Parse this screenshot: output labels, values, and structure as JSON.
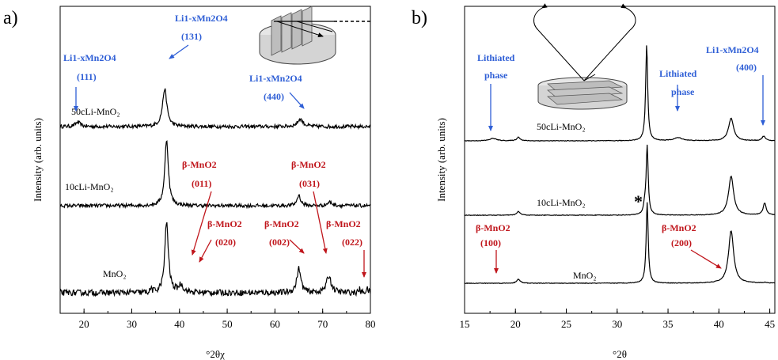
{
  "chart_data": [
    {
      "type": "line",
      "panel_label": "a)",
      "xlabel": "°2θχ",
      "ylabel": "Intensity (arb. units)",
      "xlim": [
        15,
        80
      ],
      "xticks": [
        20,
        30,
        40,
        50,
        60,
        70,
        80
      ],
      "series": [
        {
          "name": "50cLi-MnO₂",
          "offset": 2,
          "noise": 0.06,
          "peaks": [
            [
              18.7,
              0.15,
              0.6
            ],
            [
              36.9,
              1.25,
              0.55
            ],
            [
              65.3,
              0.25,
              0.7
            ]
          ]
        },
        {
          "name": "10cLi-MnO₂",
          "offset": 1,
          "noise": 0.06,
          "peaks": [
            [
              37.3,
              2.2,
              0.45
            ],
            [
              65.0,
              0.35,
              0.45
            ],
            [
              71.5,
              0.12,
              0.6
            ]
          ]
        },
        {
          "name": "MnO₂",
          "offset": 0,
          "noise": 0.1,
          "peaks": [
            [
              34.1,
              0.15,
              0.15
            ],
            [
              37.3,
              2.35,
              0.45
            ],
            [
              40.3,
              0.25,
              0.6
            ],
            [
              65.0,
              0.8,
              0.5
            ],
            [
              71.3,
              0.55,
              0.6
            ],
            [
              77.7,
              0.12,
              0.15
            ],
            [
              79.3,
              0.12,
              0.3
            ]
          ]
        }
      ],
      "annotations": [
        {
          "lines": [
            "Li1-xMn2O4",
            "(111)"
          ],
          "color": "blue"
        },
        {
          "lines": [
            "Li1-xMn2O4",
            "(131)"
          ],
          "color": "blue"
        },
        {
          "lines": [
            "Li1-xMn2O4",
            "(440)"
          ],
          "color": "blue"
        },
        {
          "lines": [
            "β-MnO2",
            "(011)"
          ],
          "color": "red"
        },
        {
          "lines": [
            "β-MnO2",
            "(020)"
          ],
          "color": "red"
        },
        {
          "lines": [
            "β-MnO2",
            "(002)"
          ],
          "color": "red"
        },
        {
          "lines": [
            "β-MnO2",
            "(031)"
          ],
          "color": "red"
        },
        {
          "lines": [
            "β-MnO2",
            "(022)"
          ],
          "color": "red"
        }
      ]
    },
    {
      "type": "line",
      "panel_label": "b)",
      "xlabel": "°2θ",
      "ylabel": "Intensity (arb. units)",
      "xlim": [
        15,
        45.5
      ],
      "xticks": [
        15,
        20,
        25,
        30,
        35,
        40,
        45
      ],
      "series": [
        {
          "name": "50cLi-MnO₂",
          "offset": 2,
          "noise": 0.01,
          "peaks": [
            [
              17.8,
              0.08,
              0.4
            ],
            [
              20.3,
              0.12,
              0.2
            ],
            [
              32.9,
              3.2,
              0.12
            ],
            [
              36.0,
              0.1,
              0.5
            ],
            [
              41.2,
              0.75,
              0.3
            ],
            [
              44.4,
              0.15,
              0.2
            ]
          ]
        },
        {
          "name": "10cLi-MnO₂",
          "offset": 1,
          "noise": 0.01,
          "peaks": [
            [
              20.3,
              0.12,
              0.2
            ],
            [
              32.7,
              0.25,
              0.12
            ],
            [
              32.95,
              2.3,
              0.12
            ],
            [
              41.2,
              1.3,
              0.3
            ],
            [
              44.5,
              0.4,
              0.18
            ]
          ]
        },
        {
          "name": "MnO₂",
          "offset": 0,
          "noise": 0.01,
          "peaks": [
            [
              20.3,
              0.13,
              0.2
            ],
            [
              32.95,
              2.7,
              0.12
            ],
            [
              41.2,
              1.75,
              0.3
            ],
            [
              44.5,
              0.02,
              0.18
            ]
          ]
        }
      ],
      "annotations": [
        {
          "lines": [
            "Lithiated",
            "phase"
          ],
          "color": "blue"
        },
        {
          "lines": [
            "Lithiated",
            "phase"
          ],
          "color": "blue"
        },
        {
          "lines": [
            "Li1-xMn2O4",
            "(400)"
          ],
          "color": "blue"
        },
        {
          "lines": [
            "β-MnO2",
            "(100)"
          ],
          "color": "red"
        },
        {
          "lines": [
            "β-MnO2",
            "(200)"
          ],
          "color": "red"
        },
        {
          "lines": [
            "*"
          ],
          "color": "black"
        }
      ]
    }
  ],
  "colors": {
    "blue": "#2f5fd6",
    "red": "#c0161c",
    "trace": "#000000"
  }
}
